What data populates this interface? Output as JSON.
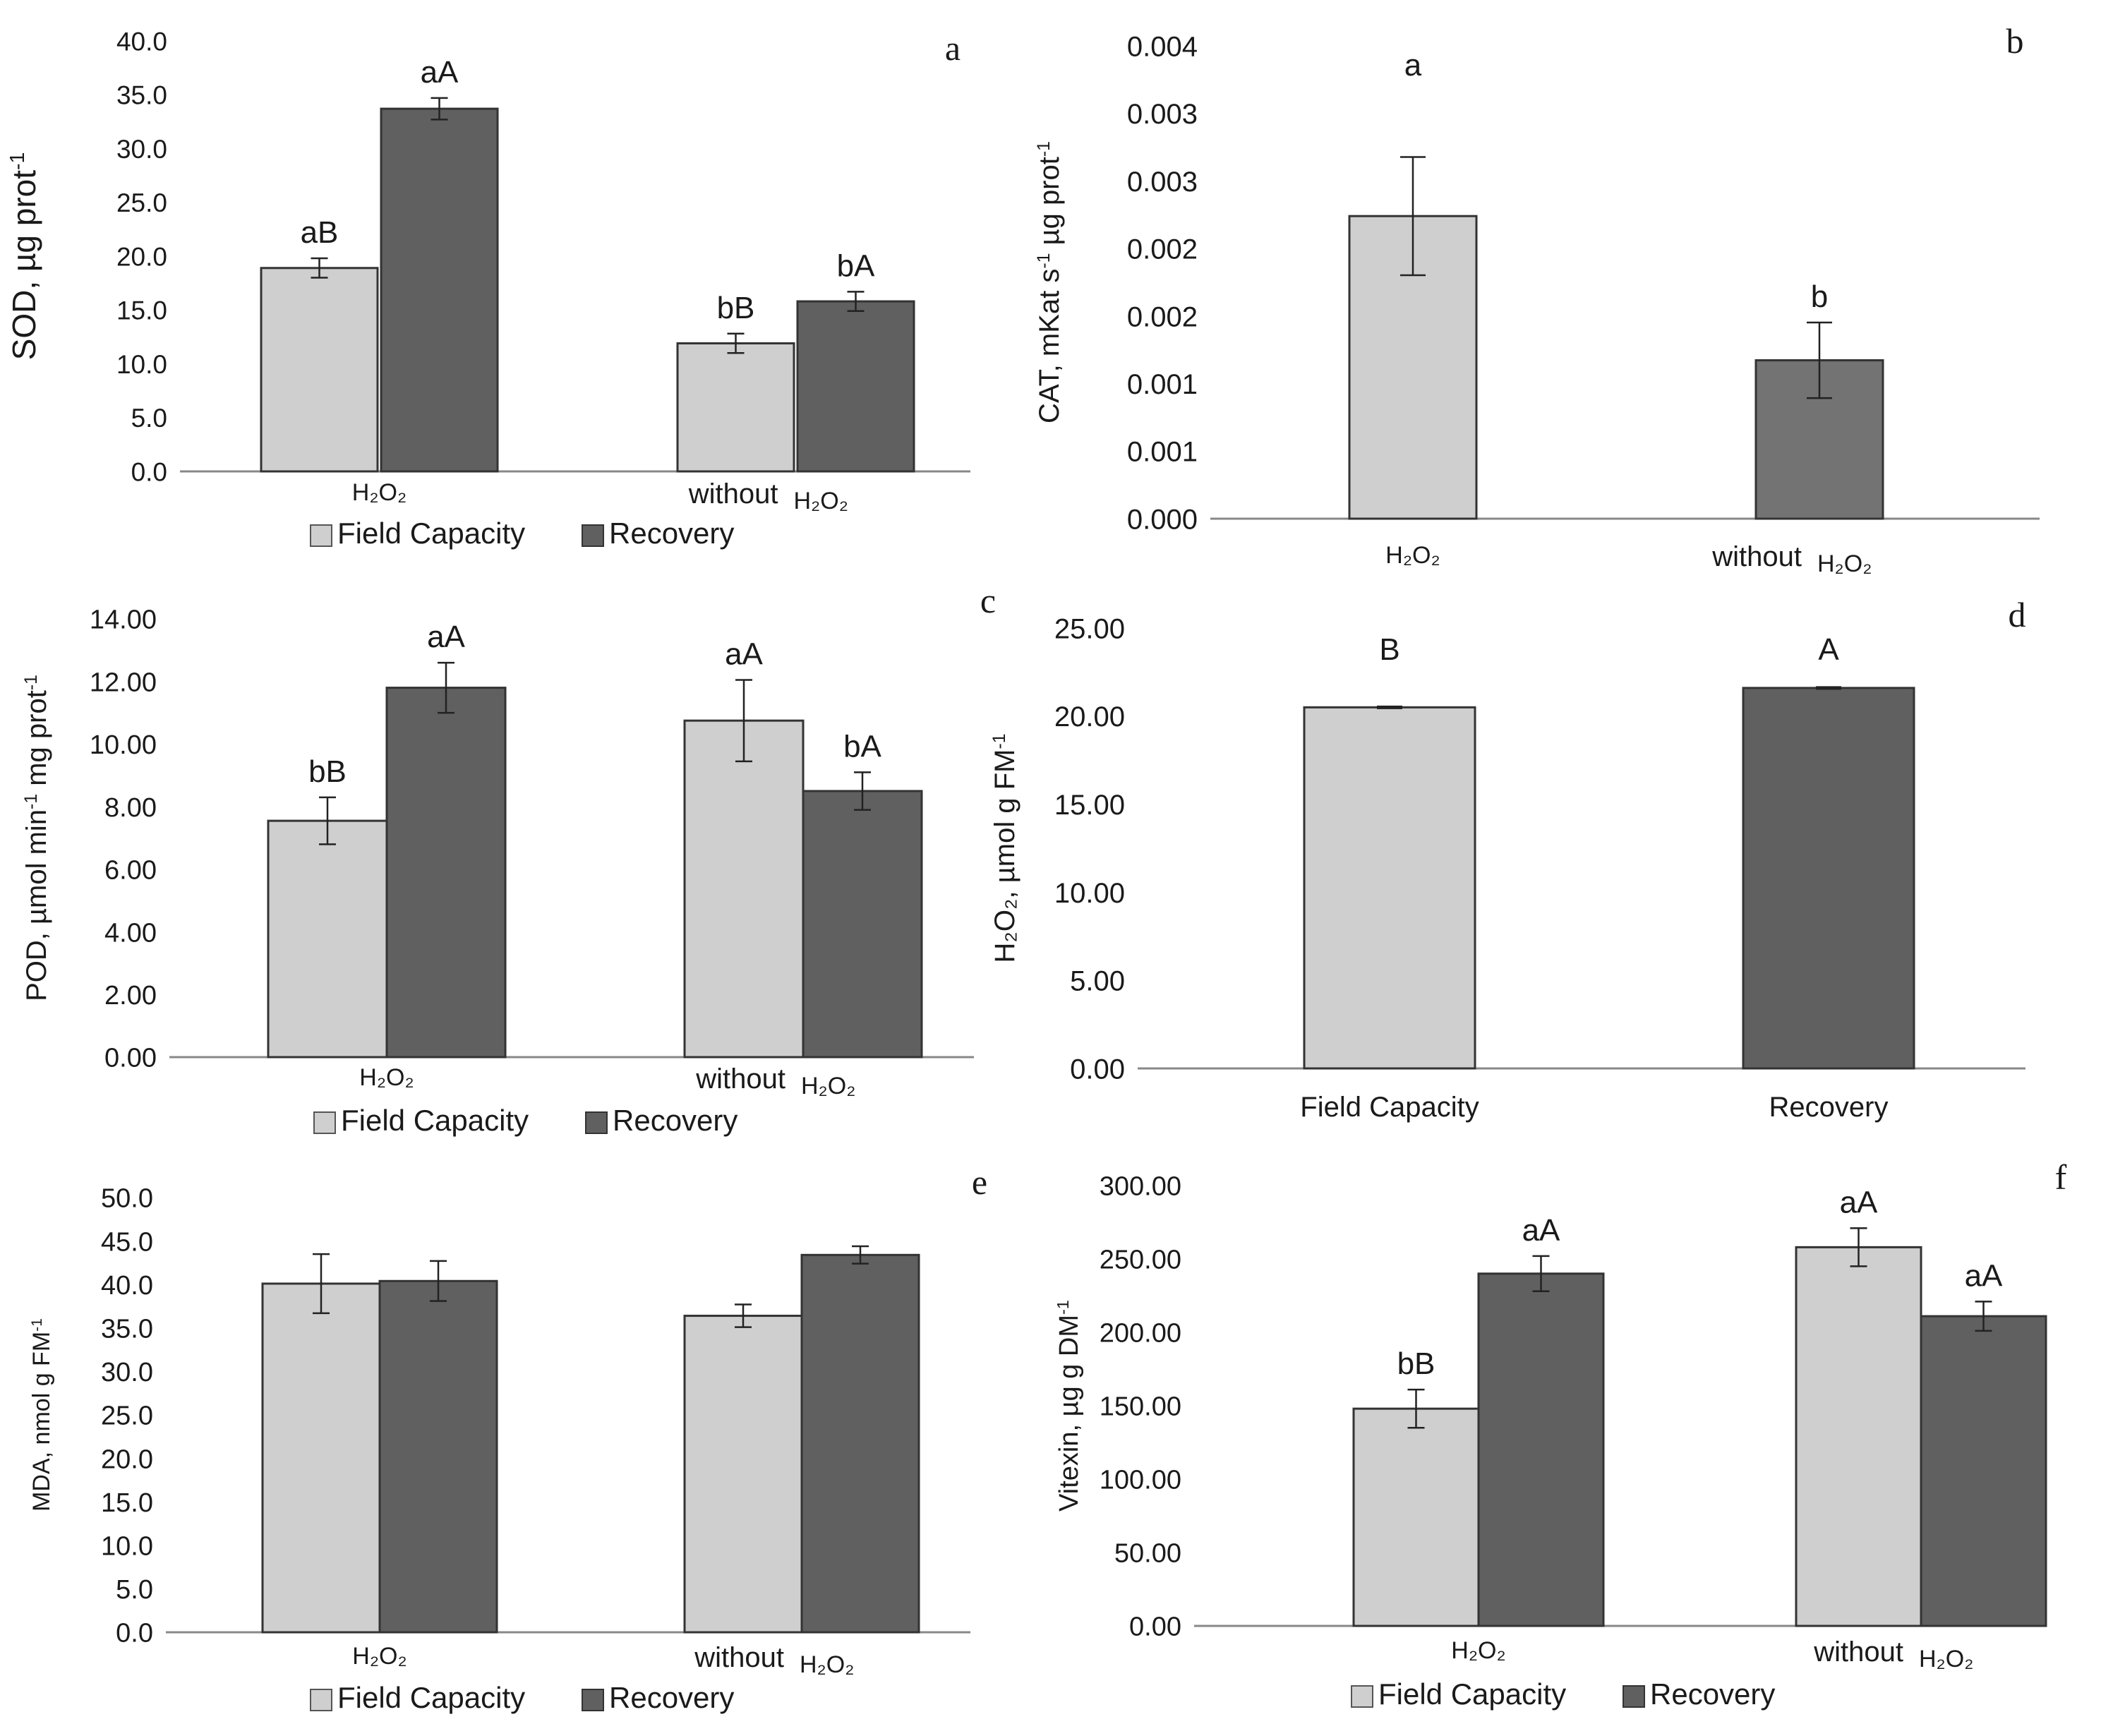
{
  "figure": {
    "colors": {
      "field_capacity": "#cfcfcf",
      "recovery": "#606060",
      "recovery_b": "#737373",
      "axis": "#888888",
      "text": "#1a1a1a"
    },
    "legend": {
      "field_capacity": "Field Capacity",
      "recovery": "Recovery"
    }
  },
  "chart_data": [
    {
      "id": "a",
      "panel_letter": "a",
      "type": "bar",
      "ylabel": "SOD, µg prot",
      "ylabel_sup": "-1",
      "categories": [
        "H2O2",
        "without H2O2"
      ],
      "category_labels": [
        {
          "pre": "",
          "chem": "H₂O₂"
        },
        {
          "pre": "without",
          "chem": "H₂O₂"
        }
      ],
      "series": [
        {
          "name": "Field Capacity",
          "values": [
            18.9,
            11.9
          ],
          "errors": [
            0.9,
            0.9
          ],
          "labels": [
            "aB",
            "bB"
          ]
        },
        {
          "name": "Recovery",
          "values": [
            33.7,
            15.8
          ],
          "errors": [
            1.0,
            0.9
          ],
          "labels": [
            "aA",
            "bA"
          ]
        }
      ],
      "ylim": [
        0,
        40
      ],
      "yticks": [
        "0.0",
        "5.0",
        "10.0",
        "15.0",
        "20.0",
        "25.0",
        "30.0",
        "35.0",
        "40.0"
      ],
      "legend": true
    },
    {
      "id": "b",
      "panel_letter": "b",
      "type": "bar",
      "ylabel": "CAT, mKat s",
      "ylabel_sup": "-1",
      "ylabel_tail": "µg prot",
      "ylabel_tail_sup": "-1",
      "categories": [
        "H2O2",
        "without H2O2"
      ],
      "category_labels": [
        {
          "pre": "",
          "chem": "H₂O₂"
        },
        {
          "pre": "without",
          "chem": "H₂O₂"
        }
      ],
      "series": [
        {
          "name": "CAT",
          "values": [
            0.00256,
            0.00134
          ],
          "errors": [
            0.0005,
            0.00032
          ],
          "labels": [
            "a",
            "b"
          ]
        }
      ],
      "ylim": [
        0,
        0.004
      ],
      "yticks": [
        "0.000",
        "0.001",
        "0.001",
        "0.002",
        "0.002",
        "0.003",
        "0.003",
        "0.004"
      ],
      "legend": false
    },
    {
      "id": "c",
      "panel_letter": "c",
      "type": "bar",
      "ylabel": "POD, µmol min",
      "ylabel_sup": "-1",
      "ylabel_tail": "mg prot",
      "ylabel_tail_sup": "-1",
      "categories": [
        "H2O2",
        "without H2O2"
      ],
      "category_labels": [
        {
          "pre": "",
          "chem": "H₂O₂"
        },
        {
          "pre": "without",
          "chem": "H₂O₂"
        }
      ],
      "series": [
        {
          "name": "Field Capacity",
          "values": [
            7.55,
            10.75
          ],
          "errors": [
            0.75,
            1.3
          ],
          "labels": [
            "bB",
            "aA"
          ]
        },
        {
          "name": "Recovery",
          "values": [
            11.8,
            8.5
          ],
          "errors": [
            0.8,
            0.6
          ],
          "labels": [
            "aA",
            "bA"
          ]
        }
      ],
      "ylim": [
        0,
        14
      ],
      "yticks": [
        "0.00",
        "2.00",
        "4.00",
        "6.00",
        "8.00",
        "10.00",
        "12.00",
        "14.00"
      ],
      "legend": true
    },
    {
      "id": "d",
      "panel_letter": "d",
      "type": "bar",
      "ylabel": "H₂O₂, µmol g FM",
      "ylabel_sup": "-1",
      "categories": [
        "Field Capacity",
        "Recovery"
      ],
      "category_labels": [
        {
          "pre": "Field Capacity",
          "chem": ""
        },
        {
          "pre": "Recovery",
          "chem": ""
        }
      ],
      "series": [
        {
          "name": "H2O2",
          "values": [
            20.5,
            21.6
          ],
          "errors": [
            0.05,
            0.05
          ],
          "labels": [
            "B",
            "A"
          ]
        }
      ],
      "ylim": [
        0,
        25
      ],
      "yticks": [
        "0.00",
        "5.00",
        "10.00",
        "15.00",
        "20.00",
        "25.00"
      ],
      "legend": false
    },
    {
      "id": "e",
      "panel_letter": "e",
      "type": "bar",
      "ylabel": "MDA, nmol g FM",
      "ylabel_sup": "-1",
      "categories": [
        "H2O2",
        "without H2O2"
      ],
      "category_labels": [
        {
          "pre": "",
          "chem": "H₂O₂"
        },
        {
          "pre": "without",
          "chem": "H₂O₂"
        }
      ],
      "series": [
        {
          "name": "Field Capacity",
          "values": [
            40.1,
            36.4
          ],
          "errors": [
            3.4,
            1.3
          ],
          "labels": [
            "",
            ""
          ]
        },
        {
          "name": "Recovery",
          "values": [
            40.4,
            43.4
          ],
          "errors": [
            2.3,
            1.0
          ],
          "labels": [
            "",
            ""
          ]
        }
      ],
      "ylim": [
        0,
        50
      ],
      "yticks": [
        "0.0",
        "5.0",
        "10.0",
        "15.0",
        "20.0",
        "25.0",
        "30.0",
        "35.0",
        "40.0",
        "45.0",
        "50.0"
      ],
      "legend": true
    },
    {
      "id": "f",
      "panel_letter": "f",
      "type": "bar",
      "ylabel": "Vitexin, µg g DM",
      "ylabel_sup": "-1",
      "categories": [
        "H2O2",
        "without H2O2"
      ],
      "category_labels": [
        {
          "pre": "",
          "chem": "H₂O₂"
        },
        {
          "pre": "without",
          "chem": "H₂O₂"
        }
      ],
      "series": [
        {
          "name": "Field Capacity",
          "values": [
            148,
            258
          ],
          "errors": [
            13,
            13
          ],
          "labels": [
            "bB",
            "aA"
          ]
        },
        {
          "name": "Recovery",
          "values": [
            240,
            211
          ],
          "errors": [
            12,
            10
          ],
          "labels": [
            "aA",
            "aA"
          ]
        }
      ],
      "ylim": [
        0,
        300
      ],
      "yticks": [
        "0.00",
        "50.00",
        "100.00",
        "150.00",
        "200.00",
        "250.00",
        "300.00"
      ],
      "legend": true
    }
  ]
}
